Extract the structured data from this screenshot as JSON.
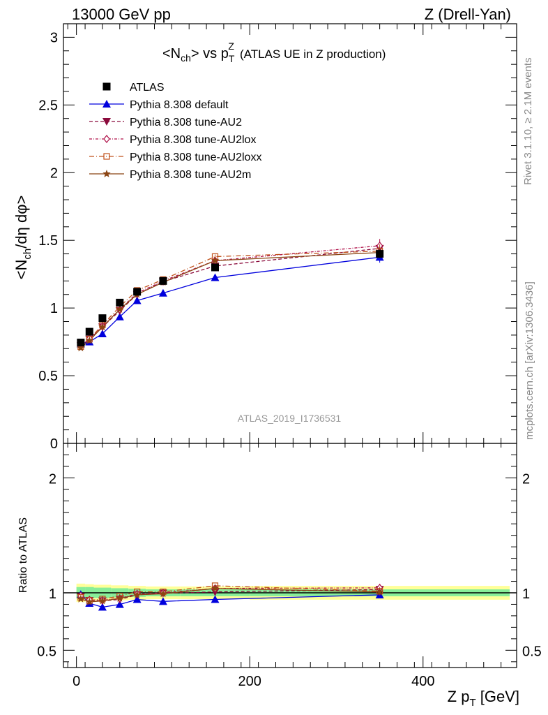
{
  "header": {
    "left": "13000 GeV pp",
    "right": "Z (Drell-Yan)"
  },
  "side_text": {
    "rivet": "Rivet 3.1.10, ≥ 2.1M events",
    "mcplots": "mcplots.cern.ch [arXiv:1306.3436]"
  },
  "chart_data": {
    "type": "line",
    "title": {
      "prefix": "<N",
      "prefix_sub": "ch",
      "mid": "> vs p",
      "mid_sub": "T",
      "mid_sup": "Z",
      "suffix": "(ATLAS UE in Z production)"
    },
    "watermark": "ATLAS_2019_I1736531",
    "ylabel": {
      "a": "<N",
      "a_sub": "ch",
      "b": "/dη dφ>"
    },
    "ratio_ylabel": "Ratio to ATLAS",
    "xlabel": {
      "a": "Z p",
      "a_sub": "T",
      "b": " [GeV]"
    },
    "xlim": [
      -15,
      508
    ],
    "ylim": [
      0,
      3.1
    ],
    "ratio_ylim": [
      0.35,
      2.3
    ],
    "x_ticks": [
      "0",
      "200",
      "400"
    ],
    "x_tick_values": [
      0,
      200,
      400
    ],
    "y_ticks": [
      "0",
      "0.5",
      "1",
      "1.5",
      "2",
      "2.5",
      "3"
    ],
    "y_tick_values": [
      0,
      0.5,
      1,
      1.5,
      2,
      2.5,
      3
    ],
    "ratio_ticks": [
      "0.5",
      "1",
      "2"
    ],
    "ratio_tick_values": [
      0.5,
      1,
      2
    ],
    "x": [
      5,
      15,
      30,
      50,
      70,
      100,
      160,
      350
    ],
    "data": {
      "name": "ATLAS",
      "values": [
        0.745,
        0.825,
        0.925,
        1.04,
        1.12,
        1.2,
        1.3,
        1.4
      ],
      "errors": [
        0.01,
        0.01,
        0.01,
        0.01,
        0.01,
        0.01,
        0.02,
        0.03
      ]
    },
    "band": {
      "x_edges": [
        0,
        10,
        20,
        40,
        60,
        80,
        120,
        200,
        500
      ],
      "inner": [
        0.05,
        0.05,
        0.045,
        0.04,
        0.035,
        0.03,
        0.03,
        0.03
      ],
      "outer": [
        0.08,
        0.075,
        0.07,
        0.065,
        0.06,
        0.055,
        0.055,
        0.06
      ]
    },
    "series": [
      {
        "name": "Pythia 8.308 default",
        "color": "#0000dd",
        "dash": "",
        "marker": "triangle-up",
        "values": [
          0.735,
          0.75,
          0.81,
          0.935,
          1.055,
          1.11,
          1.225,
          1.375
        ],
        "errors": [
          0.005,
          0.006,
          0.007,
          0.008,
          0.01,
          0.01,
          0.015,
          0.04
        ]
      },
      {
        "name": "Pythia 8.308 tune-AU2",
        "color": "#8b0a3c",
        "dash": "5,3",
        "marker": "triangle-down",
        "values": [
          0.72,
          0.77,
          0.86,
          0.98,
          1.1,
          1.195,
          1.31,
          1.44
        ],
        "errors": [
          0.005,
          0.006,
          0.007,
          0.008,
          0.01,
          0.01,
          0.015,
          0.05
        ]
      },
      {
        "name": "Pythia 8.308 tune-AU2lox",
        "color": "#b0124a",
        "dash": "4,2,1,2",
        "marker": "diamond-open",
        "values": [
          0.725,
          0.775,
          0.865,
          0.99,
          1.11,
          1.2,
          1.35,
          1.46
        ],
        "errors": [
          0.005,
          0.006,
          0.007,
          0.008,
          0.01,
          0.01,
          0.015,
          0.05
        ]
      },
      {
        "name": "Pythia 8.308 tune-AU2loxx",
        "color": "#c0501a",
        "dash": "7,3,1,3",
        "marker": "square-open",
        "values": [
          0.715,
          0.77,
          0.875,
          1.01,
          1.13,
          1.21,
          1.38,
          1.42
        ],
        "errors": [
          0.005,
          0.006,
          0.007,
          0.008,
          0.01,
          0.01,
          0.015,
          0.05
        ]
      },
      {
        "name": "Pythia 8.308 tune-AU2m",
        "color": "#8b4513",
        "dash": "",
        "marker": "star",
        "values": [
          0.705,
          0.76,
          0.86,
          0.99,
          1.1,
          1.19,
          1.35,
          1.41
        ],
        "errors": [
          0.005,
          0.006,
          0.007,
          0.008,
          0.01,
          0.01,
          0.015,
          0.04
        ]
      }
    ]
  }
}
